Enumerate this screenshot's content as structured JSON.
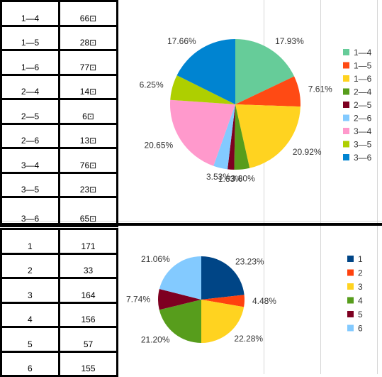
{
  "top_table": {
    "rows": [
      {
        "label": "1—4",
        "value": "66⊡"
      },
      {
        "label": "1—5",
        "value": "28⊡"
      },
      {
        "label": "1—6",
        "value": "77⊡"
      },
      {
        "label": "2—4",
        "value": "14⊡"
      },
      {
        "label": "2—5",
        "value": "6⊡"
      },
      {
        "label": "2—6",
        "value": "13⊡"
      },
      {
        "label": "3—4",
        "value": "76⊡"
      },
      {
        "label": "3—5",
        "value": "23⊡"
      },
      {
        "label": "3—6",
        "value": "65⊡"
      }
    ]
  },
  "bottom_table": {
    "rows": [
      {
        "label": "1",
        "value": "171"
      },
      {
        "label": "2",
        "value": "33"
      },
      {
        "label": "3",
        "value": "164"
      },
      {
        "label": "4",
        "value": "156"
      },
      {
        "label": "5",
        "value": "57"
      },
      {
        "label": "6",
        "value": "155"
      }
    ]
  },
  "chart_data": [
    {
      "type": "pie",
      "title": "",
      "legend_position": "right",
      "categories": [
        "1—4",
        "1—5",
        "1—6",
        "2—4",
        "2—5",
        "2—6",
        "3—4",
        "3—5",
        "3—6"
      ],
      "values": [
        17.93,
        7.61,
        20.92,
        3.8,
        1.63,
        3.53,
        20.65,
        6.25,
        17.66
      ],
      "labels": [
        "17.93%",
        "7.61%",
        "20.92%",
        "3.80%",
        "1.63%",
        "3.53%",
        "20.65%",
        "6.25%",
        "17.66%"
      ],
      "colors": [
        "#66cc99",
        "#ff4a14",
        "#ffd320",
        "#579d1c",
        "#7e0021",
        "#83caff",
        "#ff99cc",
        "#aecf00",
        "#0084d1"
      ]
    },
    {
      "type": "pie",
      "title": "",
      "legend_position": "right",
      "categories": [
        "1",
        "2",
        "3",
        "4",
        "5",
        "6"
      ],
      "values": [
        23.23,
        4.48,
        22.28,
        21.2,
        7.74,
        21.06
      ],
      "labels": [
        "23.23%",
        "4.48%",
        "22.28%",
        "21.20%",
        "7.74%",
        "21.06%"
      ],
      "colors": [
        "#004586",
        "#ff420e",
        "#ffd320",
        "#579d1c",
        "#7e0021",
        "#83caff"
      ]
    }
  ]
}
